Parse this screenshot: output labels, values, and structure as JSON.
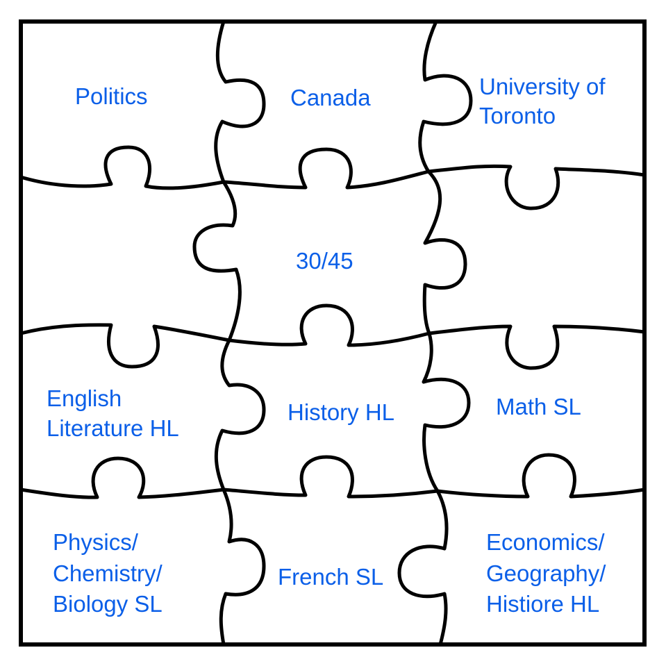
{
  "colors": {
    "label": "#0b5fe8",
    "line": "#000000",
    "background": "#ffffff"
  },
  "pieces": [
    {
      "id": "politics",
      "lines": [
        "Politics"
      ]
    },
    {
      "id": "canada",
      "lines": [
        "Canada"
      ]
    },
    {
      "id": "university",
      "lines": [
        "University of",
        "Toronto"
      ]
    },
    {
      "id": "empty-left",
      "lines": []
    },
    {
      "id": "score",
      "lines": [
        "30/45"
      ]
    },
    {
      "id": "empty-right",
      "lines": []
    },
    {
      "id": "english",
      "lines": [
        "English",
        "Literature HL"
      ]
    },
    {
      "id": "history",
      "lines": [
        "History HL"
      ]
    },
    {
      "id": "math",
      "lines": [
        "Math SL"
      ]
    },
    {
      "id": "sciences",
      "lines": [
        "Physics/",
        "Chemistry/",
        "Biology SL"
      ]
    },
    {
      "id": "french",
      "lines": [
        "French SL"
      ]
    },
    {
      "id": "humanities",
      "lines": [
        "Economics/",
        "Geography/",
        "Histiore HL"
      ]
    }
  ]
}
